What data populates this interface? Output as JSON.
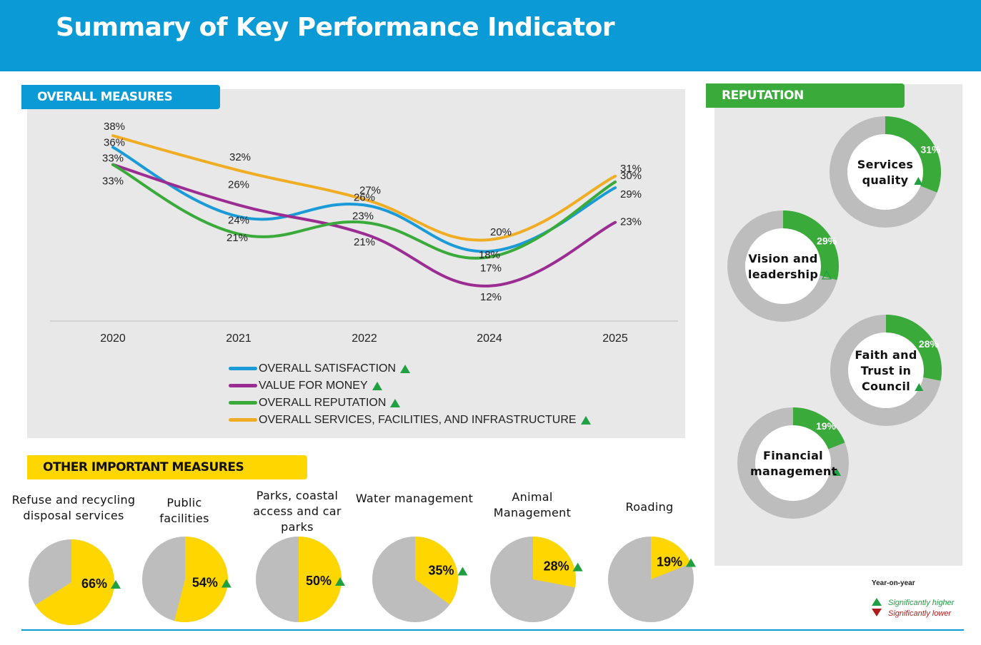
{
  "header": {
    "title": "Summary of Key Performance Indicator"
  },
  "sections": {
    "overall": "OVERALL MEASURES",
    "other": "OTHER IMPORTANT MEASURES",
    "reputation": "REPUTATION"
  },
  "colors": {
    "blue": "#0a9ad6",
    "purple": "#9b2d92",
    "green": "#3aaa3a",
    "orange": "#f0ad23",
    "yellow": "#ffd600",
    "grey": "#bdbdbd",
    "arrow_green": "#20a040",
    "arrow_red": "#b01c1c"
  },
  "chart_data": [
    {
      "type": "line",
      "title": "OVERALL MEASURES",
      "categories": [
        "2020",
        "2021",
        "2022",
        "2024",
        "2025"
      ],
      "ylim": [
        0,
        45
      ],
      "series": [
        {
          "name": "OVERALL SATISFACTION",
          "color": "#1a9bd7",
          "values": [
            36,
            24,
            26,
            18,
            29
          ],
          "labels": [
            "36%",
            "24%",
            "26%",
            "18%",
            "29%"
          ],
          "trend": "up"
        },
        {
          "name": "VALUE FOR MONEY",
          "color": "#9b2d92",
          "values": [
            33,
            26,
            21,
            12,
            23
          ],
          "labels": [
            "33%",
            "26%",
            "21%",
            "12%",
            "23%"
          ],
          "trend": "up"
        },
        {
          "name": "OVERALL REPUTATION",
          "color": "#3aaa3a",
          "values": [
            33,
            21,
            23,
            17,
            30
          ],
          "labels": [
            "33%",
            "21%",
            "23%",
            "17%",
            "30%"
          ],
          "trend": "up"
        },
        {
          "name": "OVERALL SERVICES, FACILITIES, AND INFRASTRUCTURE",
          "color": "#f0ad23",
          "values": [
            38,
            32,
            27,
            20,
            31
          ],
          "labels": [
            "38%",
            "32%",
            "27%",
            "20%",
            "31%"
          ],
          "trend": "up"
        }
      ]
    },
    {
      "type": "pie",
      "title": "OTHER IMPORTANT MEASURES",
      "items": [
        {
          "name": "Refuse and recycling disposal services",
          "title_lines": [
            "Refuse and recycling",
            "disposal services"
          ],
          "value": 66,
          "label": "66%",
          "trend": "up"
        },
        {
          "name": "Public facilities",
          "title_lines": [
            "Public",
            "facilities"
          ],
          "value": 54,
          "label": "54%",
          "trend": "up"
        },
        {
          "name": "Parks, coastal access and car parks",
          "title_lines": [
            "Parks, coastal",
            "access and car",
            "parks"
          ],
          "value": 50,
          "label": "50%",
          "trend": "up"
        },
        {
          "name": "Water management",
          "title_lines": [
            "Water management"
          ],
          "value": 35,
          "label": "35%",
          "trend": "up"
        },
        {
          "name": "Animal Management",
          "title_lines": [
            "Animal",
            "Management"
          ],
          "value": 28,
          "label": "28%",
          "trend": "up"
        },
        {
          "name": "Roading",
          "title_lines": [
            "Roading"
          ],
          "value": 19,
          "label": "19%",
          "trend": "up"
        }
      ]
    },
    {
      "type": "pie",
      "subtype": "donut",
      "title": "REPUTATION",
      "items": [
        {
          "name": "Services quality",
          "title_lines": [
            "Services",
            "quality"
          ],
          "value": 31,
          "label": "31%",
          "trend": "up"
        },
        {
          "name": "Vision and leadership",
          "title_lines": [
            "Vision and",
            "leadership"
          ],
          "value": 29,
          "label": "29%",
          "trend": "up-not-significant"
        },
        {
          "name": "Faith and Trust in Council",
          "title_lines": [
            "Faith and",
            "Trust in",
            "Council"
          ],
          "value": 28,
          "label": "28%",
          "trend": "up"
        },
        {
          "name": "Financial management",
          "title_lines": [
            "Financial",
            "management"
          ],
          "value": 19,
          "label": "19%",
          "trend": "up"
        }
      ]
    }
  ],
  "key": {
    "title": "Year-on-year",
    "higher": "Significantly higher",
    "lower": "Significantly lower"
  }
}
